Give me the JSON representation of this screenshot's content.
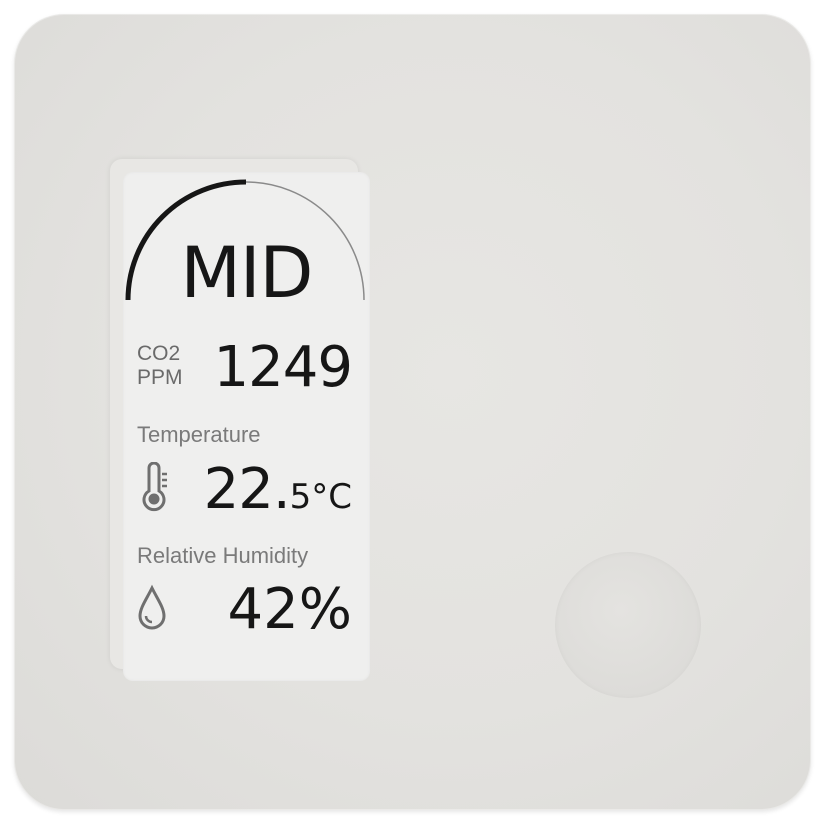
{
  "display": {
    "air_quality_level": "MID",
    "co2_label_line1": "CO2",
    "co2_label_line2": "PPM",
    "co2_value": "1249",
    "temperature_label": "Temperature",
    "temperature_integer": "22.",
    "temperature_decimal_unit": "5°C",
    "humidity_label": "Relative Humidity",
    "humidity_value": "42%",
    "gauge_fill_fraction": 0.5
  },
  "icons": {
    "temperature": "thermometer-icon",
    "humidity": "water-drop-icon"
  },
  "colors": {
    "device_body": "#e3e2df",
    "screen": "#efefee",
    "text_primary": "#161616",
    "text_secondary": "#7a7a7a"
  }
}
